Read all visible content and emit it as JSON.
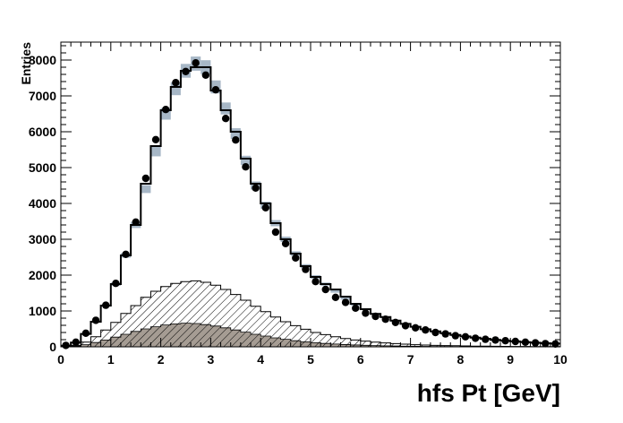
{
  "chart_data": {
    "type": "histogram",
    "title": "",
    "xlabel": "hfs Pt [GeV]",
    "ylabel": "Entries",
    "xlim": [
      0,
      10
    ],
    "ylim": [
      0,
      8500
    ],
    "x_ticks": [
      "0",
      "1",
      "2",
      "3",
      "4",
      "5",
      "6",
      "7",
      "8",
      "9",
      "10"
    ],
    "y_ticks": [
      "0",
      "1000",
      "2000",
      "3000",
      "4000",
      "5000",
      "6000",
      "7000",
      "8000"
    ],
    "bin_width": 0.2,
    "bin_low_edges": [
      0,
      0.2,
      0.4,
      0.6,
      0.8,
      1.0,
      1.2,
      1.4,
      1.6,
      1.8,
      2.0,
      2.2,
      2.4,
      2.6,
      2.8,
      3.0,
      3.2,
      3.4,
      3.6,
      3.8,
      4.0,
      4.2,
      4.4,
      4.6,
      4.8,
      5.0,
      5.2,
      5.4,
      5.6,
      5.8,
      6.0,
      6.2,
      6.4,
      6.6,
      6.8,
      7.0,
      7.2,
      7.4,
      7.6,
      7.8,
      8.0,
      8.2,
      8.4,
      8.6,
      8.8,
      9.0,
      9.2,
      9.4,
      9.6,
      9.8
    ],
    "colors": {
      "mc_line": "#000000",
      "mc_band": "#a7b7c6",
      "data_points": "#000000",
      "hatched": "#000000",
      "filled": "#a59c93"
    },
    "series": [
      {
        "style": "mc-uncertainty-band",
        "values": [
          30,
          120,
          360,
          700,
          1150,
          1750,
          2550,
          3400,
          4400,
          5450,
          6500,
          7200,
          7700,
          7900,
          7800,
          7250,
          6650,
          5950,
          5200,
          4500,
          3950,
          3450,
          3000,
          2600,
          2250,
          1950,
          1750,
          1550,
          1350,
          1180,
          1050,
          920,
          820,
          720,
          640,
          560,
          490,
          430,
          380,
          330,
          290,
          255,
          225,
          195,
          170,
          150,
          130,
          115,
          100,
          90
        ]
      },
      {
        "style": "mc-line",
        "values": [
          30,
          120,
          360,
          700,
          1150,
          1750,
          2550,
          3400,
          4550,
          5600,
          6600,
          7250,
          7700,
          7800,
          7800,
          7150,
          6600,
          6000,
          5250,
          4550,
          4000,
          3450,
          3000,
          2600,
          2250,
          1950,
          1750,
          1600,
          1400,
          1200,
          1050,
          920,
          830,
          730,
          640,
          560,
          490,
          430,
          380,
          330,
          290,
          255,
          225,
          195,
          170,
          150,
          130,
          115,
          100,
          90
        ]
      },
      {
        "style": "data-points",
        "values": [
          40,
          130,
          380,
          740,
          1160,
          1770,
          2580,
          3480,
          4700,
          5780,
          6620,
          7370,
          7680,
          7920,
          7580,
          7170,
          6370,
          5770,
          5020,
          4430,
          3880,
          3200,
          2880,
          2480,
          2160,
          1820,
          1600,
          1380,
          1240,
          1080,
          940,
          850,
          770,
          680,
          590,
          530,
          470,
          400,
          360,
          310,
          280,
          240,
          210,
          190,
          170,
          150,
          130,
          110,
          90,
          80
        ]
      },
      {
        "style": "hatched",
        "values": [
          10,
          40,
          130,
          280,
          470,
          680,
          930,
          1150,
          1380,
          1550,
          1680,
          1770,
          1820,
          1840,
          1800,
          1720,
          1600,
          1460,
          1300,
          1130,
          980,
          830,
          700,
          590,
          490,
          400,
          340,
          280,
          230,
          190,
          160,
          130,
          110,
          90,
          75,
          60,
          50,
          40,
          35,
          30,
          25,
          20,
          18,
          15,
          12,
          10,
          8,
          7,
          6,
          5
        ]
      },
      {
        "style": "filled",
        "values": [
          5,
          20,
          60,
          120,
          190,
          270,
          350,
          430,
          500,
          560,
          610,
          640,
          660,
          650,
          620,
          580,
          530,
          470,
          410,
          350,
          300,
          250,
          210,
          170,
          140,
          115,
          95,
          78,
          64,
          52,
          42,
          34,
          28,
          23,
          19,
          15,
          12,
          10,
          8,
          6,
          5,
          4,
          3,
          3,
          2,
          2,
          2,
          1,
          1,
          1
        ]
      }
    ]
  }
}
